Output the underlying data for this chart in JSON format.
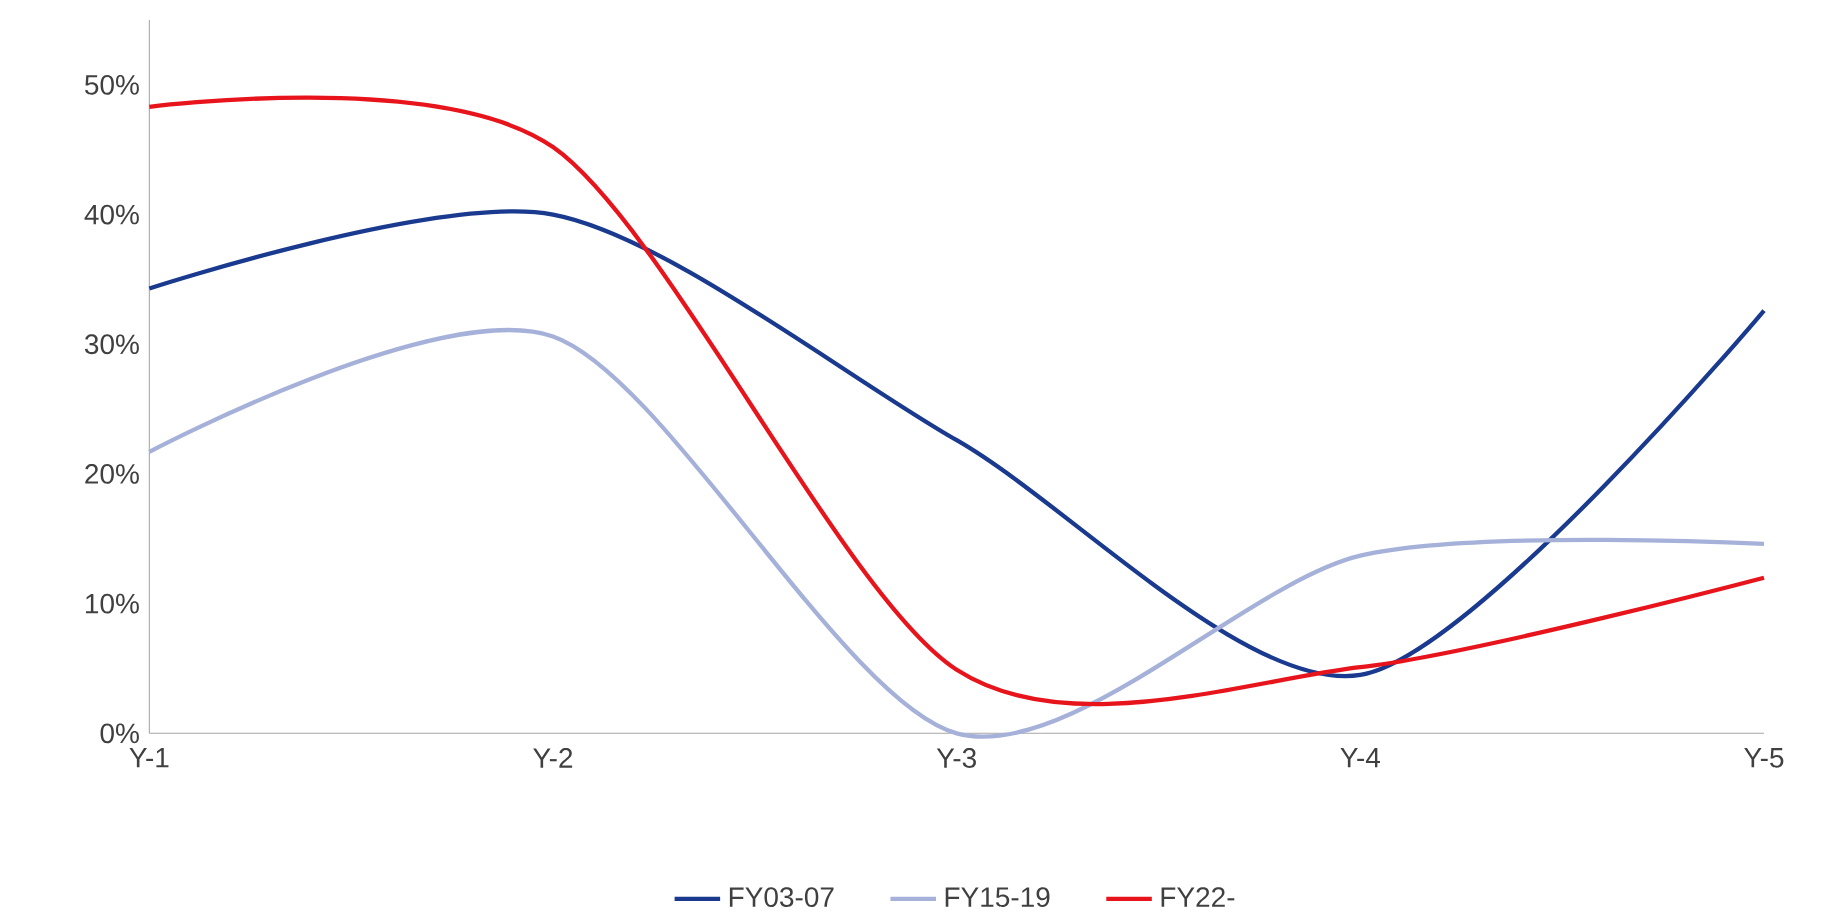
{
  "chart_data": {
    "type": "line",
    "categories": [
      "Y-1",
      "Y-2",
      "Y-3",
      "Y-4",
      "Y-5"
    ],
    "series": [
      {
        "name": "FY03-07",
        "color": "#1a3a8f",
        "values": [
          34.3,
          40,
          22.6,
          4.5,
          32.6
        ]
      },
      {
        "name": "FY15-19",
        "color": "#a6b1da",
        "values": [
          21.7,
          30.6,
          0,
          13.7,
          14.6
        ]
      },
      {
        "name": "FY22-",
        "color": "#e8141c",
        "values": [
          48.3,
          45.2,
          4.9,
          5.1,
          12
        ]
      }
    ],
    "ylim": [
      0,
      55
    ],
    "yticks": [
      {
        "value": 0,
        "label": "0%"
      },
      {
        "value": 10,
        "label": "10%"
      },
      {
        "value": 20,
        "label": "20%"
      },
      {
        "value": 30,
        "label": "30%"
      },
      {
        "value": 40,
        "label": "40%"
      },
      {
        "value": 50,
        "label": "50%"
      }
    ],
    "grid": false,
    "legend": "bottom",
    "marker": "none",
    "line_style": "solid"
  }
}
